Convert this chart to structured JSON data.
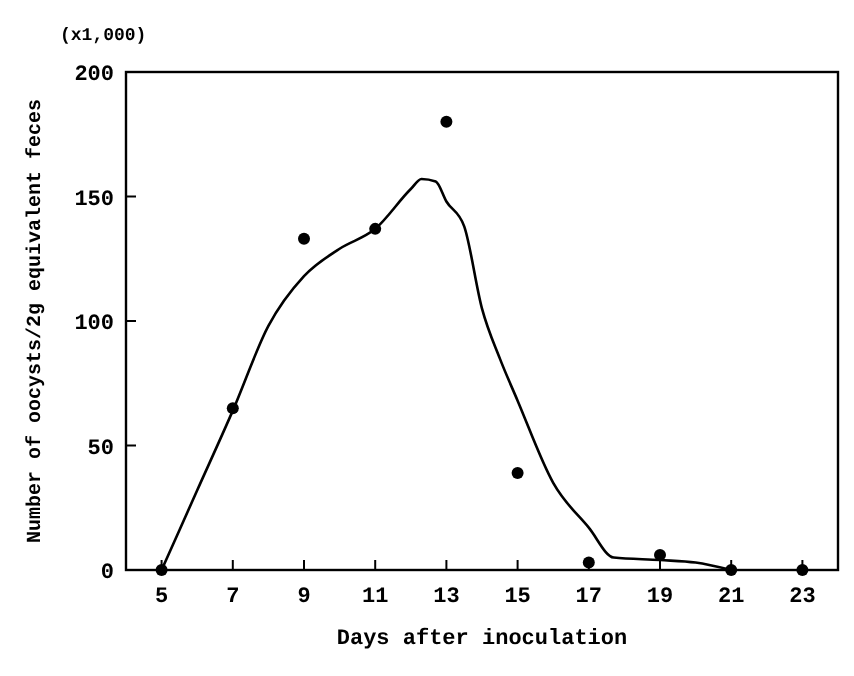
{
  "chart_data": {
    "type": "scatter",
    "xlabel": "Days after inoculation",
    "ylabel": "Number of oocysts/2g equivalent feces",
    "annotations": [
      "(x1,000)"
    ],
    "xlim": [
      4,
      24
    ],
    "ylim": [
      0,
      200
    ],
    "xticks": [
      5,
      7,
      9,
      11,
      13,
      15,
      17,
      19,
      21,
      23
    ],
    "yticks": [
      0,
      50,
      100,
      150,
      200
    ],
    "grid": false,
    "series": [
      {
        "color": "#000000",
        "marker": "circle",
        "x": [
          5,
          7,
          9,
          11,
          13,
          15,
          17,
          19,
          21,
          23
        ],
        "values": [
          0,
          65,
          133,
          137,
          180,
          39,
          3,
          6,
          0,
          0
        ]
      },
      {
        "type": "line",
        "color": "#000000",
        "marker": "none",
        "line_style": "solid",
        "x": [
          5,
          6,
          7,
          8,
          9,
          10,
          11,
          12,
          12.3,
          12.7,
          13,
          13.5,
          14,
          14.5,
          15,
          16,
          17,
          17.7,
          19,
          20,
          21
        ],
        "values": [
          0,
          32,
          64,
          98,
          118,
          129,
          137,
          153,
          157,
          156,
          148,
          138,
          105,
          85,
          68,
          35,
          17,
          5,
          4,
          3,
          0
        ]
      }
    ]
  }
}
